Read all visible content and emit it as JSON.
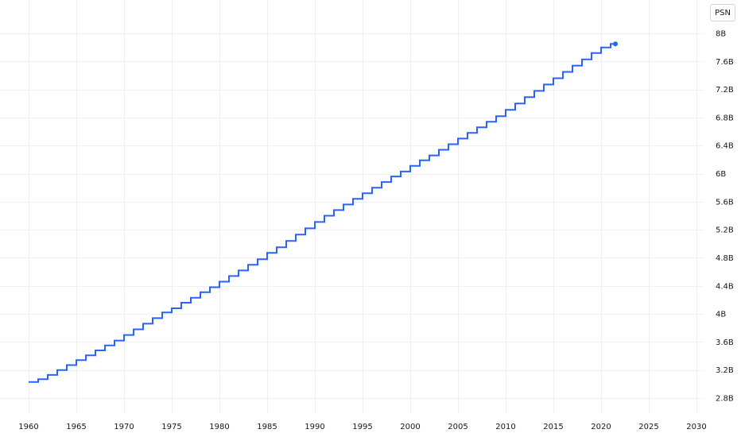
{
  "symbol_badge": "PSN",
  "chart_data": {
    "type": "line",
    "style": "step",
    "title": "",
    "xlabel": "",
    "ylabel": "",
    "xlim": [
      1959.9,
      2030.2
    ],
    "ylim": [
      2.66,
      8.18
    ],
    "x_ticks": [
      1960,
      1965,
      1970,
      1975,
      1980,
      1985,
      1990,
      1995,
      2000,
      2005,
      2010,
      2015,
      2020,
      2025,
      2030
    ],
    "x_tick_labels": [
      "1960",
      "1965",
      "1970",
      "1975",
      "1980",
      "1985",
      "1990",
      "1995",
      "2000",
      "2005",
      "2010",
      "2015",
      "2020",
      "2025",
      "2030"
    ],
    "y_ticks": [
      2.8,
      3.2,
      3.6,
      4.0,
      4.4,
      4.8,
      5.2,
      5.6,
      6.0,
      6.4,
      6.8,
      7.2,
      7.6,
      8.0
    ],
    "y_tick_labels": [
      "2.8B",
      "3.2B",
      "3.6B",
      "4B",
      "4.4B",
      "4.8B",
      "5.2B",
      "5.6B",
      "6B",
      "6.4B",
      "6.8B",
      "7.2B",
      "7.6B",
      "8B"
    ],
    "y_axis_position": "right",
    "grid": true,
    "legend": "none",
    "line_color": "#2962ff",
    "series": [
      {
        "x": [
          1960,
          1961,
          1962,
          1963,
          1964,
          1965,
          1966,
          1967,
          1968,
          1969,
          1970,
          1971,
          1972,
          1973,
          1974,
          1975,
          1976,
          1977,
          1978,
          1979,
          1980,
          1981,
          1982,
          1983,
          1984,
          1985,
          1986,
          1987,
          1988,
          1989,
          1990,
          1991,
          1992,
          1993,
          1994,
          1995,
          1996,
          1997,
          1998,
          1999,
          2000,
          2001,
          2002,
          2003,
          2004,
          2005,
          2006,
          2007,
          2008,
          2009,
          2010,
          2011,
          2012,
          2013,
          2014,
          2015,
          2016,
          2017,
          2018,
          2019,
          2020,
          2021
        ],
        "values": [
          3.03,
          3.07,
          3.13,
          3.2,
          3.27,
          3.34,
          3.41,
          3.48,
          3.55,
          3.62,
          3.7,
          3.78,
          3.86,
          3.94,
          4.02,
          4.08,
          4.16,
          4.23,
          4.31,
          4.38,
          4.46,
          4.54,
          4.62,
          4.7,
          4.78,
          4.87,
          4.95,
          5.04,
          5.13,
          5.22,
          5.31,
          5.4,
          5.48,
          5.56,
          5.64,
          5.72,
          5.8,
          5.88,
          5.96,
          6.03,
          6.11,
          6.19,
          6.26,
          6.34,
          6.42,
          6.5,
          6.58,
          6.66,
          6.74,
          6.82,
          6.91,
          7.0,
          7.09,
          7.18,
          7.27,
          7.36,
          7.45,
          7.54,
          7.63,
          7.72,
          7.8,
          7.85
        ]
      }
    ]
  }
}
